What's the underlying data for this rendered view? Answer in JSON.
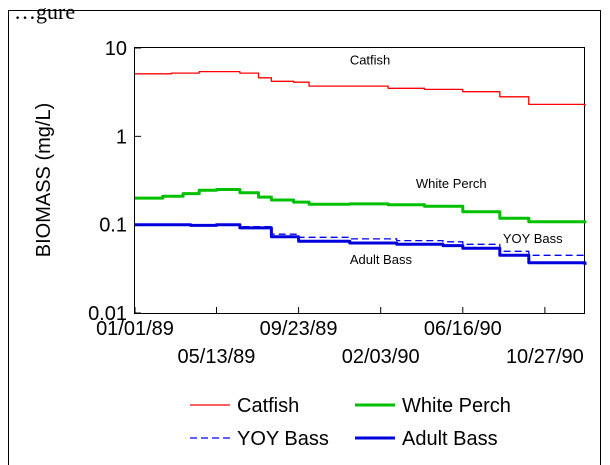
{
  "caption": "…gure",
  "chart_data": {
    "type": "line",
    "ylabel": "BIOMASS (mg/L)",
    "xlabel": "",
    "yscale": "log",
    "ylim": [
      0.01,
      10
    ],
    "xlim": [
      "1989-01-01",
      "1990-12-31"
    ],
    "y_ticks": [
      {
        "value": 10,
        "label": "10"
      },
      {
        "value": 1,
        "label": "1"
      },
      {
        "value": 0.1,
        "label": "0.1"
      },
      {
        "value": 0.01,
        "label": "0.01"
      }
    ],
    "x_ticks": [
      {
        "date": "1989-01-01",
        "label": "01/01/89",
        "row": 1
      },
      {
        "date": "1989-05-13",
        "label": "05/13/89",
        "row": 2
      },
      {
        "date": "1989-09-23",
        "label": "09/23/89",
        "row": 1
      },
      {
        "date": "1990-02-03",
        "label": "02/03/90",
        "row": 2
      },
      {
        "date": "1990-06-16",
        "label": "06/16/90",
        "row": 1
      },
      {
        "date": "1990-10-27",
        "label": "10/27/90",
        "row": 2
      }
    ],
    "grid": false,
    "legend_position": "bottom",
    "series": [
      {
        "name": "Catfish",
        "color": "#ff0000",
        "style": "solid",
        "weight": "thin",
        "label": "Catfish",
        "label_at": {
          "date": "1989-12-15",
          "value": 6.5
        },
        "x": [
          "1989-01-01",
          "1989-03-01",
          "1989-04-15",
          "1989-05-13",
          "1989-06-20",
          "1989-07-20",
          "1989-08-10",
          "1989-09-15",
          "1989-10-10",
          "1989-12-01",
          "1990-02-15",
          "1990-04-15",
          "1990-06-16",
          "1990-08-15",
          "1990-10-01",
          "1990-12-31"
        ],
        "y": [
          5.1,
          5.2,
          5.4,
          5.4,
          5.2,
          4.6,
          4.2,
          4.1,
          3.7,
          3.7,
          3.5,
          3.4,
          3.2,
          2.8,
          2.3,
          2.2
        ]
      },
      {
        "name": "White Perch",
        "color": "#00c000",
        "style": "solid",
        "weight": "thick",
        "label": "White Perch",
        "label_at": {
          "date": "1990-04-01",
          "value": 0.26
        },
        "x": [
          "1989-01-01",
          "1989-02-15",
          "1989-03-20",
          "1989-04-15",
          "1989-05-13",
          "1989-06-20",
          "1989-07-20",
          "1989-08-10",
          "1989-09-15",
          "1989-10-10",
          "1989-12-15",
          "1990-02-15",
          "1990-04-15",
          "1990-06-16",
          "1990-08-15",
          "1990-10-01",
          "1990-12-31"
        ],
        "y": [
          0.2,
          0.21,
          0.225,
          0.245,
          0.25,
          0.23,
          0.205,
          0.19,
          0.18,
          0.17,
          0.172,
          0.168,
          0.162,
          0.14,
          0.118,
          0.108,
          0.104
        ]
      },
      {
        "name": "YOY Bass",
        "color": "#0000ff",
        "style": "dashed",
        "weight": "thin",
        "label": "YOY Bass",
        "label_at": {
          "date": "1990-08-20",
          "value": 0.062
        },
        "x": [
          "1989-01-01",
          "1989-04-01",
          "1989-05-13",
          "1989-06-20",
          "1989-08-10",
          "1989-09-23",
          "1989-12-15",
          "1990-03-01",
          "1990-05-15",
          "1990-06-16",
          "1990-08-15",
          "1990-10-01",
          "1990-12-31"
        ],
        "y": [
          0.1,
          0.099,
          0.1,
          0.095,
          0.078,
          0.072,
          0.069,
          0.066,
          0.064,
          0.06,
          0.05,
          0.045,
          0.044
        ]
      },
      {
        "name": "Adult Bass",
        "color": "#0000dd",
        "style": "solid",
        "weight": "thick",
        "label": "Adult Bass",
        "label_at": {
          "date": "1989-12-15",
          "value": 0.036
        },
        "x": [
          "1989-01-01",
          "1989-04-01",
          "1989-05-13",
          "1989-06-20",
          "1989-08-10",
          "1989-09-23",
          "1989-12-15",
          "1990-03-01",
          "1990-05-15",
          "1990-06-16",
          "1990-08-15",
          "1990-10-01",
          "1990-12-31"
        ],
        "y": [
          0.1,
          0.098,
          0.1,
          0.092,
          0.073,
          0.065,
          0.062,
          0.06,
          0.058,
          0.054,
          0.045,
          0.037,
          0.035
        ]
      }
    ]
  }
}
